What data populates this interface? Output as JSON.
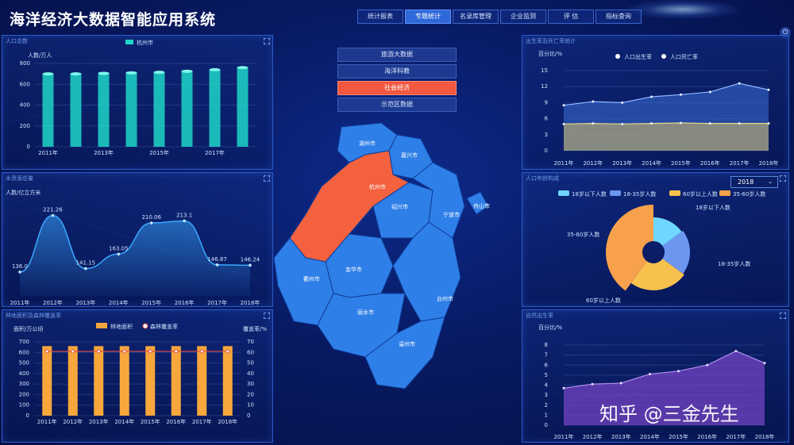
{
  "header": {
    "title": "海洋经济大数据智能应用系统",
    "nav": [
      "统计报表",
      "专题统计",
      "名录库管理",
      "企业监测",
      "评 估",
      "指标查询"
    ],
    "active_nav": 1
  },
  "sub_menu": {
    "items": [
      "旅游大数据",
      "海洋科教",
      "社会经济",
      "示范区数据"
    ],
    "active": 2
  },
  "map": {
    "cities": [
      "湖州市",
      "嘉兴市",
      "杭州市",
      "绍兴市",
      "宁波市",
      "舟山市",
      "衢州市",
      "金华市",
      "台州市",
      "丽水市",
      "温州市"
    ],
    "highlight_color": "#f4613f",
    "base_color": "#2f7fe8"
  },
  "panels": {
    "population": {
      "title": "人口总数"
    },
    "water": {
      "title": "水资源总量"
    },
    "forest": {
      "title": "林地面积及森林覆盖率"
    },
    "birth_death": {
      "title": "出生率及死亡率统计"
    },
    "age": {
      "title": "人口年龄构成",
      "select_value": "2018"
    },
    "birth": {
      "title": "自然出生率"
    }
  },
  "watermark": "知乎 @三金先生",
  "chart_data": [
    {
      "type": "bar",
      "title": "人口总数",
      "ylabel": "人数/万人",
      "series": [
        {
          "name": "杭州市",
          "values": [
            700,
            700,
            705,
            710,
            715,
            725,
            740,
            760
          ]
        }
      ],
      "categories": [
        "2011年",
        "2012年",
        "2013年",
        "2014年",
        "2015年",
        "2016年",
        "2017年",
        "2018年"
      ],
      "x_tick_labels": [
        "2011年",
        "2013年",
        "2015年",
        "2017年"
      ],
      "ylim": [
        0,
        800
      ],
      "yticks": [
        "0",
        "200",
        "400",
        "600",
        "800"
      ],
      "color": "#1fd6c8"
    },
    {
      "type": "area",
      "title": "水资源总量",
      "ylabel": "人数/亿立方米",
      "categories": [
        "2011年",
        "2012年",
        "2013年",
        "2014年",
        "2015年",
        "2016年",
        "2017年",
        "2018年"
      ],
      "values": [
        136.0,
        221.26,
        141.15,
        163.05,
        210.06,
        213.1,
        146.87,
        146.24
      ],
      "labels": [
        "136.0",
        "221.26",
        "141.15",
        "163.05",
        "210.06",
        "213.1",
        "146.87",
        "146.24"
      ],
      "ylim": [
        100,
        240
      ],
      "color": "#3aa8ff"
    },
    {
      "type": "bar",
      "title": "林地面积及森林覆盖率",
      "ylabel": "面积/万公顷",
      "y2label": "覆盖率/%",
      "categories": [
        "2011年",
        "2012年",
        "2013年",
        "2014年",
        "2015年",
        "2016年",
        "2017年",
        "2018年"
      ],
      "series": [
        {
          "name": "林地面积",
          "values": [
            660,
            660,
            660,
            660,
            660,
            660,
            660,
            660
          ]
        },
        {
          "name": "森林覆盖率",
          "values": [
            61,
            61,
            61,
            61,
            61,
            61,
            61,
            61
          ]
        }
      ],
      "ylim": [
        0,
        700
      ],
      "y2lim": [
        0,
        70
      ],
      "yticks": [
        "0",
        "100",
        "200",
        "300",
        "400",
        "500",
        "600",
        "700"
      ],
      "y2ticks": [
        "0",
        "10",
        "20",
        "30",
        "40",
        "50",
        "60",
        "70"
      ],
      "colors": [
        "#f7a73b",
        "#e34b45"
      ]
    },
    {
      "type": "area",
      "title": "出生率及死亡率统计",
      "ylabel": "百分比/%",
      "categories": [
        "2011年",
        "2012年",
        "2013年",
        "2014年",
        "2015年",
        "2016年",
        "2017年",
        "2018年"
      ],
      "series": [
        {
          "name": "人口出生率",
          "values": [
            8.5,
            9.2,
            9.0,
            10.1,
            10.5,
            11.0,
            12.6,
            11.4
          ]
        },
        {
          "name": "人口死亡率",
          "values": [
            5.0,
            5.1,
            5.0,
            5.1,
            5.2,
            5.1,
            5.1,
            5.1
          ]
        }
      ],
      "ylim": [
        0,
        15
      ],
      "yticks": [
        "0",
        "3",
        "6",
        "9",
        "12",
        "15"
      ],
      "colors": [
        "#3d6fd6",
        "#c9b56a"
      ]
    },
    {
      "type": "pie",
      "title": "人口年龄构成",
      "categories": [
        "18岁以下人数",
        "18-35岁人数",
        "60岁以上人数",
        "35-60岁人数"
      ],
      "values": [
        15,
        20,
        25,
        40
      ],
      "colors": [
        "#6fd6ff",
        "#6c96f0",
        "#f8c14e",
        "#f7a14d"
      ]
    },
    {
      "type": "area",
      "title": "自然出生率",
      "ylabel": "百分比/%",
      "categories": [
        "2011年",
        "2012年",
        "2013年",
        "2014年",
        "2015年",
        "2016年",
        "2017年",
        "2018年"
      ],
      "values": [
        3.7,
        4.1,
        4.2,
        5.1,
        5.4,
        6.0,
        7.4,
        6.2
      ],
      "ylim": [
        0,
        8
      ],
      "yticks": [
        "0",
        "1",
        "2",
        "3",
        "4",
        "5",
        "6",
        "7",
        "8"
      ],
      "color": "#7b46c9"
    }
  ]
}
